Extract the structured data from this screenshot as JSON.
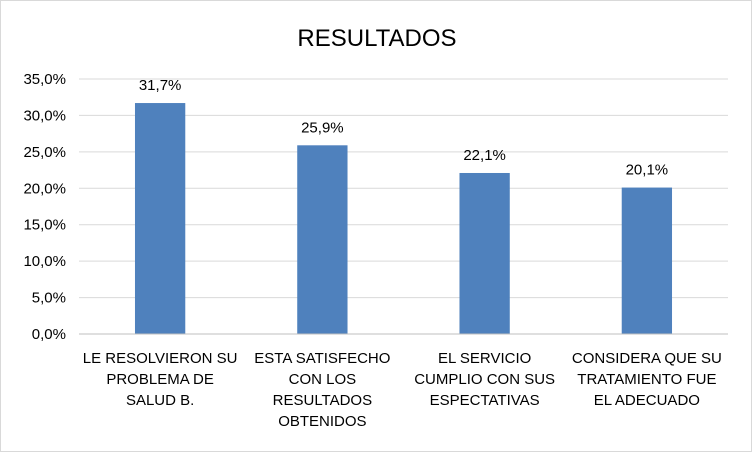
{
  "chart_data": {
    "type": "bar",
    "title": "RESULTADOS",
    "categories": [
      [
        "LE RESOLVIERON SU",
        "PROBLEMA DE",
        "SALUD B."
      ],
      [
        "ESTA SATISFECHO",
        "CON LOS",
        "RESULTADOS",
        "OBTENIDOS"
      ],
      [
        "EL SERVICIO",
        "CUMPLIO CON SUS",
        "ESPECTATIVAS"
      ],
      [
        "CONSIDERA QUE  SU",
        "TRATAMIENTO FUE",
        "EL ADECUADO"
      ]
    ],
    "values": [
      31.7,
      25.9,
      22.1,
      20.1
    ],
    "data_labels": [
      "31,7%",
      "25,9%",
      "22,1%",
      "20,1%"
    ],
    "ylim": [
      0,
      35
    ],
    "yticks": [
      "0,0%",
      "5,0%",
      "10,0%",
      "15,0%",
      "20,0%",
      "25,0%",
      "30,0%",
      "35,0%"
    ],
    "xlabel": "",
    "ylabel": "",
    "grid": true,
    "legend": "none",
    "colors": {
      "bar": "#4f81bd",
      "grid": "#d9d9d9",
      "axis": "#bfbfbf"
    }
  }
}
